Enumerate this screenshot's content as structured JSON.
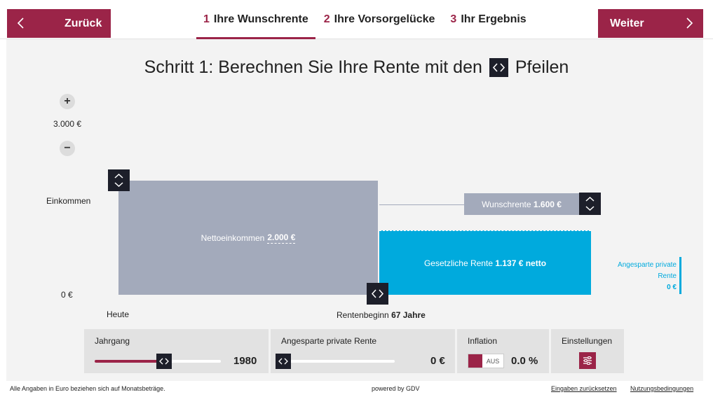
{
  "nav": {
    "back_label": "Zurück",
    "next_label": "Weiter",
    "steps": [
      {
        "num": "1",
        "label": "Ihre Wunschrente"
      },
      {
        "num": "2",
        "label": "Ihre Vorsorgelücke"
      },
      {
        "num": "3",
        "label": "Ihr Ergebnis"
      }
    ]
  },
  "title": {
    "before": "Schritt 1: Berechnen Sie Ihre Rente mit den",
    "after": "Pfeilen"
  },
  "axis": {
    "plus": "+",
    "minus": "−",
    "scale_max": "3.000 €",
    "y_label": "Einkommen",
    "zero": "0 €",
    "start_label": "Heute",
    "retire_label": "Rentenbeginn",
    "retire_age": "67 Jahre"
  },
  "bars": {
    "net_label": "Nettoeinkommen",
    "net_value": "2.000 €",
    "legal_label": "Gesetzliche Rente",
    "legal_value": "1.137 € netto",
    "wish_label": "Wunschrente",
    "wish_value": "1.600 €",
    "private_line1": "Angesparte private",
    "private_line2": "Rente",
    "private_value": "0 €"
  },
  "controls": {
    "jahrgang_label": "Jahrgang",
    "jahrgang_value": "1980",
    "jahrgang_fraction": 0.55,
    "private_label": "Angesparte private Rente",
    "private_value": "0 €",
    "private_fraction": 0.0,
    "inflation_label": "Inflation",
    "inflation_toggle": "AUS",
    "inflation_value": "0.0 %",
    "settings_label": "Einstellungen"
  },
  "footer": {
    "note": "Alle Angaben in Euro beziehen sich auf Monatsbeträge.",
    "powered": "powered by GDV",
    "reset": "Eingaben zurücksetzen",
    "terms": "Nutzungsbedingungen"
  },
  "colors": {
    "accent": "#9b2448",
    "dark": "#1d1f2a",
    "gray_bar": "#a3aabb",
    "blue_bar": "#00aadd"
  }
}
